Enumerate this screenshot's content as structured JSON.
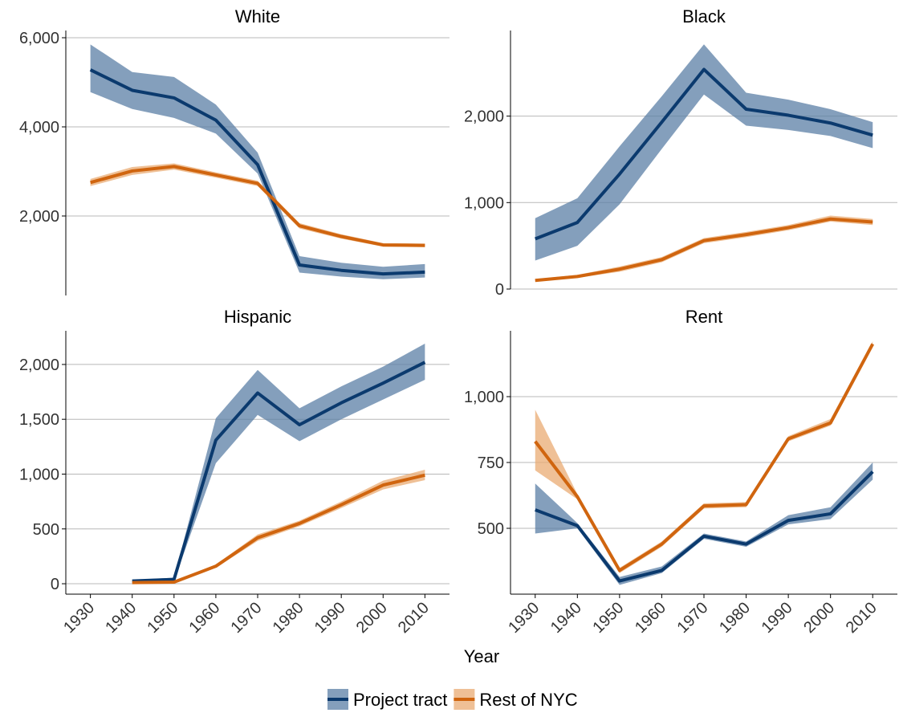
{
  "x_label": "Year",
  "chart_data": [
    {
      "type": "line",
      "title": "White",
      "x": [
        1930,
        1940,
        1950,
        1960,
        1970,
        1980,
        1990,
        2000,
        2010
      ],
      "xlim": [
        1927,
        2013
      ],
      "ylim": [
        216,
        6162
      ],
      "yticks": [
        {
          "value": 2000,
          "label": "2,000"
        },
        {
          "value": 4000,
          "label": "4,000"
        },
        {
          "value": 6000,
          "label": "6,000"
        }
      ],
      "grid": true,
      "series": [
        {
          "name": "Project tract",
          "color": "#0b3a6e",
          "band_color": "#5b7fa5",
          "values": [
            5280,
            4820,
            4650,
            4150,
            3150,
            900,
            780,
            700,
            740
          ],
          "lower": [
            4780,
            4400,
            4200,
            3850,
            2950,
            730,
            640,
            580,
            620
          ],
          "upper": [
            5850,
            5230,
            5120,
            4500,
            3420,
            1100,
            950,
            860,
            920
          ]
        },
        {
          "name": "Rest of NYC",
          "color": "#d0650f",
          "band_color": "#e9ab73",
          "values": [
            2750,
            3010,
            3110,
            2920,
            2730,
            1780,
            1540,
            1350,
            1340
          ],
          "lower": [
            2670,
            2920,
            3040,
            2860,
            2670,
            1720,
            1490,
            1310,
            1300
          ],
          "upper": [
            2830,
            3100,
            3180,
            2980,
            2790,
            1840,
            1590,
            1390,
            1380
          ]
        }
      ]
    },
    {
      "type": "line",
      "title": "Black",
      "x": [
        1930,
        1940,
        1950,
        1960,
        1970,
        1980,
        1990,
        2000,
        2010
      ],
      "xlim": [
        1927,
        2013
      ],
      "ylim": [
        0,
        2990
      ],
      "yticks": [
        0,
        {
          "value": 1000,
          "label": "1,000"
        },
        {
          "value": 2000,
          "label": "2,000"
        }
      ],
      "grid": true,
      "series": [
        {
          "name": "Project tract",
          "color": "#0b3a6e",
          "band_color": "#5b7fa5",
          "values": [
            580,
            770,
            1330,
            1930,
            2540,
            2080,
            2010,
            1920,
            1780
          ],
          "lower": [
            330,
            500,
            980,
            1620,
            2250,
            1890,
            1840,
            1770,
            1630
          ],
          "upper": [
            820,
            1050,
            1650,
            2230,
            2830,
            2270,
            2190,
            2080,
            1930
          ]
        },
        {
          "name": "Rest of NYC",
          "color": "#d0650f",
          "band_color": "#e9ab73",
          "values": [
            100,
            145,
            230,
            340,
            560,
            630,
            710,
            810,
            775
          ],
          "lower": [
            85,
            130,
            200,
            310,
            530,
            600,
            680,
            780,
            740
          ],
          "upper": [
            115,
            165,
            260,
            370,
            590,
            660,
            740,
            850,
            810
          ]
        }
      ]
    },
    {
      "type": "line",
      "title": "Hispanic",
      "x": [
        1930,
        1940,
        1950,
        1960,
        1970,
        1980,
        1990,
        2000,
        2010
      ],
      "xlim": [
        1927,
        2013
      ],
      "xticks": [
        1930,
        1940,
        1950,
        1960,
        1970,
        1980,
        1990,
        2000,
        2010
      ],
      "ylim": [
        -95,
        2307
      ],
      "yticks": [
        0,
        500,
        {
          "value": 1000,
          "label": "1,000"
        },
        {
          "value": 1500,
          "label": "1,500"
        },
        {
          "value": 2000,
          "label": "2,000"
        }
      ],
      "grid": true,
      "series": [
        {
          "name": "Project tract",
          "color": "#0b3a6e",
          "band_color": "#5b7fa5",
          "values": [
            null,
            25,
            40,
            1310,
            1740,
            1450,
            1650,
            1830,
            2020
          ],
          "lower": [
            null,
            15,
            25,
            1100,
            1540,
            1300,
            1500,
            1680,
            1860
          ],
          "upper": [
            null,
            35,
            55,
            1510,
            1950,
            1600,
            1800,
            1980,
            2190
          ]
        },
        {
          "name": "Rest of NYC",
          "color": "#d0650f",
          "band_color": "#e9ab73",
          "values": [
            null,
            10,
            15,
            160,
            420,
            550,
            720,
            900,
            990
          ],
          "lower": [
            null,
            5,
            10,
            145,
            390,
            525,
            690,
            860,
            945
          ],
          "upper": [
            null,
            15,
            20,
            175,
            450,
            575,
            750,
            940,
            1040
          ]
        }
      ]
    },
    {
      "type": "line",
      "title": "Rent",
      "x": [
        1930,
        1940,
        1950,
        1960,
        1970,
        1980,
        1990,
        2000,
        2010
      ],
      "xlim": [
        1927,
        2013
      ],
      "xticks": [
        1930,
        1940,
        1950,
        1960,
        1970,
        1980,
        1990,
        2000,
        2010
      ],
      "ylim": [
        250,
        1250
      ],
      "yticks": [
        500,
        750,
        {
          "value": 1000,
          "label": "1,000"
        }
      ],
      "grid": true,
      "series": [
        {
          "name": "Project tract",
          "color": "#0b3a6e",
          "band_color": "#5b7fa5",
          "values": [
            570,
            510,
            300,
            340,
            470,
            440,
            530,
            555,
            715
          ],
          "lower": [
            480,
            500,
            285,
            330,
            460,
            430,
            515,
            535,
            685
          ],
          "upper": [
            670,
            520,
            315,
            355,
            480,
            450,
            550,
            580,
            750
          ]
        },
        {
          "name": "Rest of NYC",
          "color": "#d0650f",
          "band_color": "#e9ab73",
          "values": [
            830,
            620,
            340,
            440,
            585,
            590,
            840,
            900,
            1200
          ],
          "lower": [
            720,
            610,
            330,
            430,
            575,
            580,
            830,
            890,
            1190
          ],
          "upper": [
            950,
            630,
            350,
            450,
            595,
            600,
            850,
            915,
            1210
          ]
        }
      ]
    }
  ]
}
